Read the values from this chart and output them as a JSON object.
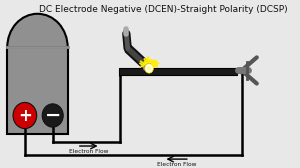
{
  "title": "DC Electrode Negative (DCEN)-Straight Polarity (DCSP)",
  "title_fontsize": 6.5,
  "bg_color": "#e8e8e8",
  "machine_color": "#909090",
  "machine_outline": "#000000",
  "plus_circle_color": "#cc0000",
  "minus_circle_color": "#1a1a1a",
  "wire_color": "#000000",
  "workpiece_color": "#1a1a1a",
  "electron_flow_label1": "Electron Flow",
  "electron_flow_label2": "Electron Flow",
  "spark_color": "#ffee00",
  "spark_white": "#ffffff"
}
